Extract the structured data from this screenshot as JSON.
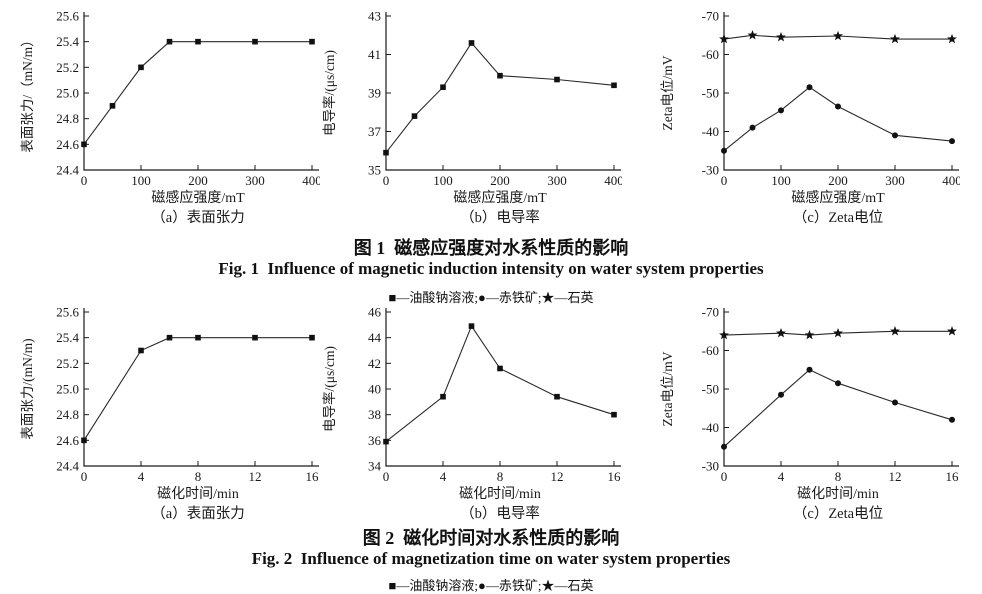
{
  "page": {
    "background": "#ffffff",
    "ink_color": "#1a1a1a"
  },
  "figure1": {
    "caption_zh": "图 1  磁感应强度对水系性质的影响",
    "caption_en": "Fig. 1  Influence of magnetic induction intensity on water system properties",
    "legend": "■—油酸钠溶液;●—赤铁矿;★—石英",
    "legend_items": [
      {
        "symbol": "■",
        "marker": "square",
        "label": "油酸钠溶液"
      },
      {
        "symbol": "●",
        "marker": "circle",
        "label": "赤铁矿"
      },
      {
        "symbol": "★",
        "marker": "star",
        "label": "石英"
      }
    ]
  },
  "figure2": {
    "caption_zh": "图 2  磁化时间对水系性质的影响",
    "caption_en": "Fig. 2  Influence of magnetization time on water system properties",
    "legend": "■—油酸钠溶液;●—赤铁矿;★—石英",
    "legend_items": [
      {
        "symbol": "■",
        "marker": "square",
        "label": "油酸钠溶液"
      },
      {
        "symbol": "●",
        "marker": "circle",
        "label": "赤铁矿"
      },
      {
        "symbol": "★",
        "marker": "star",
        "label": "石英"
      }
    ]
  },
  "chart_data": [
    {
      "id": "fig1a",
      "figure": 1,
      "type": "line",
      "subcaption": "（a）表面张力",
      "xlabel": "磁感应强度/mT",
      "ylabel": "表面张力/（mN/m）",
      "xlim": [
        0,
        400
      ],
      "xticks": [
        "0",
        "100",
        "200",
        "300",
        "400"
      ],
      "ylim": [
        24.4,
        25.6
      ],
      "yticks": [
        "24.4",
        "24.6",
        "24.8",
        "25.0",
        "25.2",
        "25.4",
        "25.6"
      ],
      "grid": false,
      "legend_position": "none",
      "series": [
        {
          "name": "油酸钠溶液",
          "marker": "square",
          "x": [
            0,
            50,
            100,
            150,
            200,
            300,
            400
          ],
          "y": [
            24.6,
            24.9,
            25.2,
            25.4,
            25.4,
            25.4,
            25.4
          ]
        }
      ]
    },
    {
      "id": "fig1b",
      "figure": 1,
      "type": "line",
      "subcaption": "（b）电导率",
      "xlabel": "磁感应强度/mT",
      "ylabel": "电导率/(μs/cm)",
      "xlim": [
        0,
        400
      ],
      "xticks": [
        "0",
        "100",
        "200",
        "300",
        "400"
      ],
      "ylim": [
        35,
        43
      ],
      "yticks": [
        "35",
        "37",
        "39",
        "41",
        "43"
      ],
      "grid": false,
      "legend_position": "none",
      "series": [
        {
          "name": "油酸钠溶液",
          "marker": "square",
          "x": [
            0,
            50,
            100,
            150,
            200,
            300,
            400
          ],
          "y": [
            35.9,
            37.8,
            39.3,
            41.6,
            39.9,
            39.7,
            39.4
          ]
        }
      ]
    },
    {
      "id": "fig1c",
      "figure": 1,
      "type": "line",
      "subcaption": "（c）Zeta电位",
      "xlabel": "磁感应强度/mT",
      "ylabel": "Zeta电位/mV",
      "xlim": [
        0,
        400
      ],
      "xticks": [
        "0",
        "100",
        "200",
        "300",
        "400"
      ],
      "ylim": [
        -30,
        -70
      ],
      "y_axis_inverted": true,
      "yticks": [
        "-70",
        "-60",
        "-50",
        "-40",
        "-30"
      ],
      "grid": false,
      "legend_position": "none",
      "series": [
        {
          "name": "赤铁矿",
          "marker": "circle",
          "x": [
            0,
            50,
            100,
            150,
            200,
            300,
            400
          ],
          "y": [
            -35,
            -41,
            -45.5,
            -51.5,
            -46.5,
            -39,
            -37.5
          ]
        },
        {
          "name": "石英",
          "marker": "star",
          "x": [
            0,
            50,
            100,
            200,
            300,
            400
          ],
          "y": [
            -64,
            -65,
            -64.5,
            -64.8,
            -64,
            -64
          ]
        }
      ]
    },
    {
      "id": "fig2a",
      "figure": 2,
      "type": "line",
      "subcaption": "（a）表面张力",
      "xlabel": "磁化时间/min",
      "ylabel": "表面张力/(mN/m)",
      "xlim": [
        0,
        16
      ],
      "xticks": [
        "0",
        "4",
        "8",
        "12",
        "16"
      ],
      "ylim": [
        24.4,
        25.6
      ],
      "yticks": [
        "24.4",
        "24.6",
        "24.8",
        "25.0",
        "25.2",
        "25.4",
        "25.6"
      ],
      "grid": false,
      "legend_position": "none",
      "series": [
        {
          "name": "油酸钠溶液",
          "marker": "square",
          "x": [
            0,
            4,
            6,
            8,
            12,
            16
          ],
          "y": [
            24.6,
            25.3,
            25.4,
            25.4,
            25.4,
            25.4
          ]
        }
      ]
    },
    {
      "id": "fig2b",
      "figure": 2,
      "type": "line",
      "subcaption": "（b）电导率",
      "xlabel": "磁化时间/min",
      "ylabel": "电导率/(μs/cm)",
      "xlim": [
        0,
        16
      ],
      "xticks": [
        "0",
        "4",
        "8",
        "12",
        "16"
      ],
      "ylim": [
        34,
        46
      ],
      "yticks": [
        "34",
        "36",
        "38",
        "40",
        "42",
        "44",
        "46"
      ],
      "grid": false,
      "legend_position": "none",
      "series": [
        {
          "name": "油酸钠溶液",
          "marker": "square",
          "x": [
            0,
            4,
            6,
            8,
            12,
            16
          ],
          "y": [
            35.9,
            39.4,
            44.9,
            41.6,
            39.4,
            38.0
          ]
        }
      ]
    },
    {
      "id": "fig2c",
      "figure": 2,
      "type": "line",
      "subcaption": "（c）Zeta电位",
      "xlabel": "磁化时间/min",
      "ylabel": "Zeta电位/mV",
      "xlim": [
        0,
        16
      ],
      "xticks": [
        "0",
        "4",
        "8",
        "12",
        "16"
      ],
      "ylim": [
        -30,
        -70
      ],
      "y_axis_inverted": true,
      "yticks": [
        "-70",
        "-60",
        "-50",
        "-40",
        "-30"
      ],
      "grid": false,
      "legend_position": "none",
      "series": [
        {
          "name": "赤铁矿",
          "marker": "circle",
          "x": [
            0,
            4,
            6,
            8,
            12,
            16
          ],
          "y": [
            -35,
            -48.5,
            -55,
            -51.5,
            -46.5,
            -42
          ]
        },
        {
          "name": "石英",
          "marker": "star",
          "x": [
            0,
            4,
            6,
            8,
            12,
            16
          ],
          "y": [
            -64,
            -64.5,
            -64,
            -64.5,
            -65,
            -65
          ]
        }
      ]
    }
  ]
}
